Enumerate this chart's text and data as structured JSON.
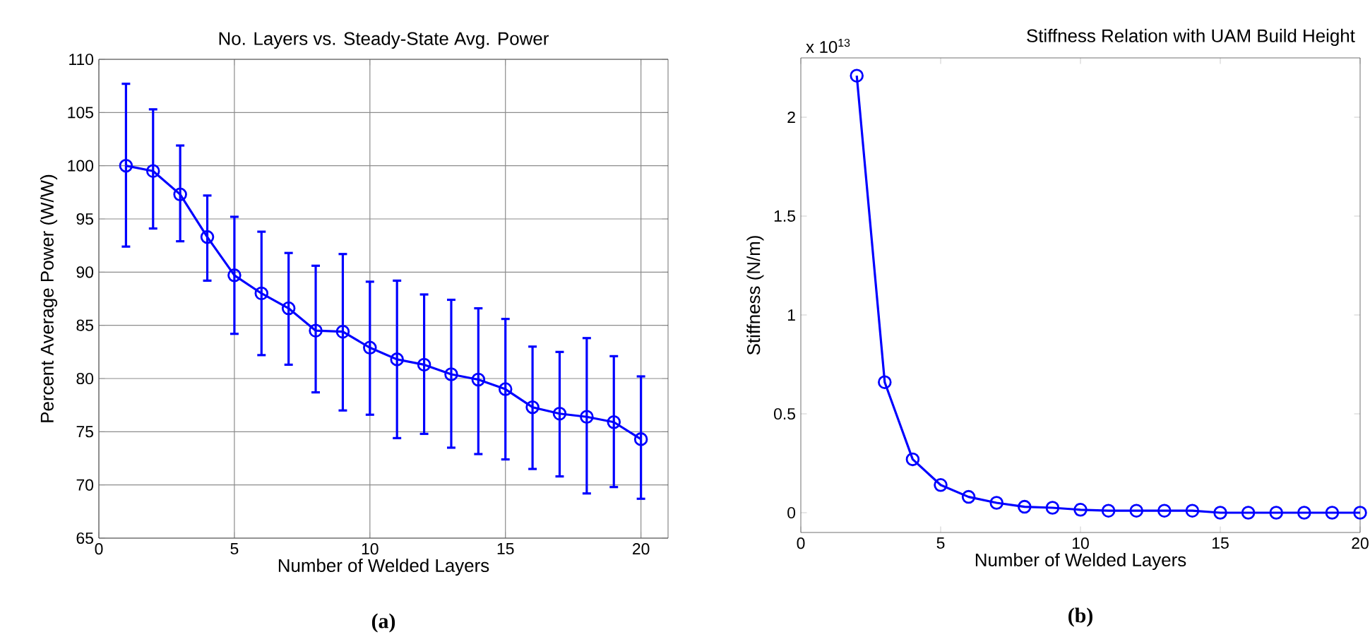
{
  "chart_data": [
    {
      "type": "line",
      "title": "No. Layers vs. Steady-State Avg. Power",
      "xlabel": "Number of Welded Layers",
      "ylabel": "Percent Average Power (W/W)",
      "x": [
        1,
        2,
        3,
        4,
        5,
        6,
        7,
        8,
        9,
        10,
        11,
        12,
        13,
        14,
        15,
        16,
        17,
        18,
        19,
        20
      ],
      "series": [
        {
          "color": "#0000ff",
          "values": [
            100,
            99.5,
            97.3,
            93.3,
            89.7,
            88,
            86.6,
            84.5,
            84.4,
            82.9,
            81.8,
            81.3,
            80.4,
            79.9,
            79.0,
            77.3,
            76.7,
            76.4,
            75.9,
            74.3
          ],
          "errors": [
            [
              92.4,
              107.7
            ],
            [
              94.1,
              105.3
            ],
            [
              92.9,
              101.9
            ],
            [
              89.2,
              97.2
            ],
            [
              84.2,
              95.2
            ],
            [
              82.2,
              93.8
            ],
            [
              81.3,
              91.8
            ],
            [
              78.7,
              90.6
            ],
            [
              77.0,
              91.7
            ],
            [
              76.6,
              89.1
            ],
            [
              74.4,
              89.2
            ],
            [
              74.8,
              87.9
            ],
            [
              73.5,
              87.4
            ],
            [
              72.9,
              86.6
            ],
            [
              72.4,
              85.6
            ],
            [
              71.5,
              83.0
            ],
            [
              70.8,
              82.5
            ],
            [
              69.2,
              83.8
            ],
            [
              69.8,
              82.1
            ],
            [
              68.7,
              80.2
            ]
          ]
        }
      ],
      "xlim": [
        0,
        21
      ],
      "ylim": [
        65,
        110
      ],
      "xticks": [
        0,
        5,
        10,
        15,
        20
      ],
      "yticks": [
        65,
        70,
        75,
        80,
        85,
        90,
        95,
        100,
        105,
        110
      ],
      "grid": true,
      "marker": "circle",
      "line_style": "solid",
      "annotations": [
        "(a)"
      ]
    },
    {
      "type": "line",
      "title": "Stiffness Relation with UAM Build Height",
      "xlabel": "Number of Welded Layers",
      "ylabel": "Stiffness (N/m)",
      "x": [
        2,
        3,
        4,
        5,
        6,
        7,
        8,
        9,
        10,
        11,
        12,
        13,
        14,
        15,
        16,
        17,
        18,
        19,
        20
      ],
      "series": [
        {
          "color": "#0000ff",
          "values": [
            2.21,
            0.66,
            0.27,
            0.14,
            0.08,
            0.05,
            0.03,
            0.025,
            0.015,
            0.01,
            0.01,
            0.01,
            0.01,
            0,
            0,
            0,
            0,
            0,
            0
          ]
        }
      ],
      "xlim": [
        0,
        20
      ],
      "ylim": [
        -0.1,
        2.3
      ],
      "xticks": [
        0,
        5,
        10,
        15,
        20
      ],
      "yticks": [
        0,
        0.5,
        1,
        1.5,
        2
      ],
      "grid": false,
      "marker": "circle",
      "line_style": "solid",
      "annotations": [
        "x 10$^{13}$",
        "(b)"
      ]
    }
  ]
}
